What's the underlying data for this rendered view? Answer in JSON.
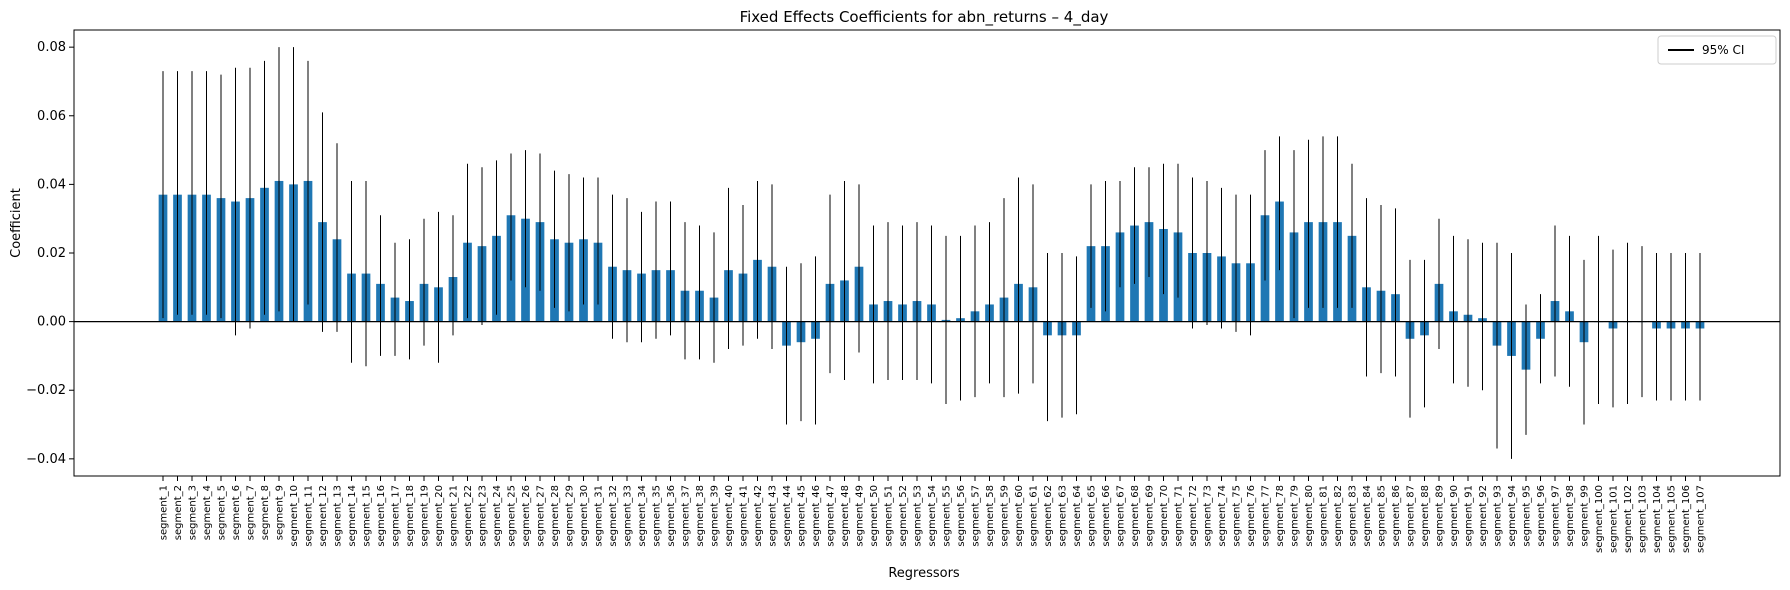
{
  "chart_data": {
    "type": "bar",
    "title": "Fixed Effects Coefficients for abn_returns – 4_day",
    "xlabel": "Regressors",
    "ylabel": "Coefficient",
    "ylim": [
      -0.045,
      0.085
    ],
    "yticks": [
      -0.04,
      -0.02,
      0.0,
      0.02,
      0.04,
      0.06,
      0.08
    ],
    "ytick_labels": [
      "−0.04",
      "−0.02",
      "0.00",
      "0.02",
      "0.04",
      "0.06",
      "0.08"
    ],
    "legend": {
      "label": "95% CI",
      "placement": "top-right"
    },
    "bar_color": "#1f77b4",
    "zero_line": true,
    "grid": false,
    "categories": [
      "segment_1",
      "segment_2",
      "segment_3",
      "segment_4",
      "segment_5",
      "segment_6",
      "segment_7",
      "segment_8",
      "segment_9",
      "segment_10",
      "segment_11",
      "segment_12",
      "segment_13",
      "segment_14",
      "segment_15",
      "segment_16",
      "segment_17",
      "segment_18",
      "segment_19",
      "segment_20",
      "segment_21",
      "segment_22",
      "segment_23",
      "segment_24",
      "segment_25",
      "segment_26",
      "segment_27",
      "segment_28",
      "segment_29",
      "segment_30",
      "segment_31",
      "segment_32",
      "segment_33",
      "segment_34",
      "segment_35",
      "segment_36",
      "segment_37",
      "segment_38",
      "segment_39",
      "segment_40",
      "segment_41",
      "segment_42",
      "segment_43",
      "segment_44",
      "segment_45",
      "segment_46",
      "segment_47",
      "segment_48",
      "segment_49",
      "segment_50",
      "segment_51",
      "segment_52",
      "segment_53",
      "segment_54",
      "segment_55",
      "segment_56",
      "segment_57",
      "segment_58",
      "segment_59",
      "segment_60",
      "segment_61",
      "segment_62",
      "segment_63",
      "segment_64",
      "segment_65",
      "segment_66",
      "segment_67",
      "segment_68",
      "segment_69",
      "segment_70",
      "segment_71",
      "segment_72",
      "segment_73",
      "segment_74",
      "segment_75",
      "segment_76",
      "segment_77",
      "segment_78",
      "segment_79",
      "segment_80",
      "segment_81",
      "segment_82",
      "segment_83",
      "segment_84",
      "segment_85",
      "segment_86",
      "segment_87",
      "segment_88",
      "segment_89",
      "segment_90",
      "segment_91",
      "segment_92",
      "segment_93",
      "segment_94",
      "segment_95",
      "segment_96",
      "segment_97",
      "segment_98",
      "segment_99",
      "segment_100",
      "segment_101",
      "segment_102",
      "segment_103",
      "segment_104",
      "segment_105",
      "segment_106",
      "segment_107"
    ],
    "values": [
      0.037,
      0.037,
      0.037,
      0.037,
      0.036,
      0.035,
      0.036,
      0.039,
      0.041,
      0.04,
      0.041,
      0.029,
      0.024,
      0.014,
      0.014,
      0.011,
      0.007,
      0.006,
      0.011,
      0.01,
      0.013,
      0.023,
      0.022,
      0.025,
      0.031,
      0.03,
      0.029,
      0.024,
      0.023,
      0.024,
      0.023,
      0.016,
      0.015,
      0.014,
      0.015,
      0.015,
      0.009,
      0.009,
      0.007,
      0.015,
      0.014,
      0.018,
      0.016,
      -0.007,
      -0.006,
      -0.005,
      0.011,
      0.012,
      0.016,
      0.005,
      0.006,
      0.005,
      0.006,
      0.005,
      0.0005,
      0.001,
      0.003,
      0.005,
      0.007,
      0.011,
      0.01,
      -0.004,
      -0.004,
      -0.004,
      0.022,
      0.022,
      0.026,
      0.028,
      0.029,
      0.027,
      0.026,
      0.02,
      0.02,
      0.019,
      0.017,
      0.017,
      0.031,
      0.035,
      0.026,
      0.029,
      0.029,
      0.029,
      0.025,
      0.01,
      0.009,
      0.008,
      -0.005,
      -0.004,
      0.011,
      0.003,
      0.002,
      0.001,
      -0.007,
      -0.01,
      -0.014,
      -0.005,
      0.006,
      0.003,
      -0.006,
      0.0,
      -0.002,
      0.0,
      0.0,
      -0.002,
      -0.002,
      -0.002,
      -0.002
    ],
    "ci_low": [
      0.001,
      0.002,
      0.002,
      0.002,
      0.001,
      -0.004,
      -0.002,
      0.002,
      0.003,
      0.0,
      0.005,
      -0.003,
      -0.003,
      -0.012,
      -0.013,
      -0.01,
      -0.01,
      -0.011,
      -0.007,
      -0.012,
      -0.004,
      0.001,
      -0.001,
      0.002,
      0.012,
      0.01,
      0.009,
      0.004,
      0.003,
      0.005,
      0.005,
      -0.005,
      -0.006,
      -0.006,
      -0.005,
      -0.004,
      -0.011,
      -0.011,
      -0.012,
      -0.008,
      -0.007,
      -0.005,
      -0.008,
      -0.03,
      -0.029,
      -0.03,
      -0.015,
      -0.017,
      -0.009,
      -0.018,
      -0.017,
      -0.017,
      -0.017,
      -0.018,
      -0.024,
      -0.023,
      -0.022,
      -0.018,
      -0.022,
      -0.021,
      -0.018,
      -0.029,
      -0.028,
      -0.027,
      0.004,
      0.003,
      0.01,
      0.011,
      0.013,
      0.008,
      0.007,
      -0.002,
      -0.001,
      -0.002,
      -0.003,
      -0.004,
      0.012,
      0.015,
      0.001,
      0.004,
      0.004,
      0.004,
      0.004,
      -0.016,
      -0.015,
      -0.016,
      -0.028,
      -0.025,
      -0.008,
      -0.018,
      -0.019,
      -0.02,
      -0.037,
      -0.04,
      -0.033,
      -0.018,
      -0.016,
      -0.019,
      -0.03,
      -0.024,
      -0.025,
      -0.024,
      -0.022,
      -0.023,
      -0.023,
      -0.023,
      -0.023
    ],
    "ci_high": [
      0.073,
      0.073,
      0.073,
      0.073,
      0.072,
      0.074,
      0.074,
      0.076,
      0.08,
      0.08,
      0.076,
      0.061,
      0.052,
      0.041,
      0.041,
      0.031,
      0.023,
      0.024,
      0.03,
      0.032,
      0.031,
      0.046,
      0.045,
      0.047,
      0.049,
      0.05,
      0.049,
      0.044,
      0.043,
      0.042,
      0.042,
      0.037,
      0.036,
      0.032,
      0.035,
      0.035,
      0.029,
      0.028,
      0.026,
      0.039,
      0.034,
      0.041,
      0.04,
      0.016,
      0.017,
      0.019,
      0.037,
      0.041,
      0.04,
      0.028,
      0.029,
      0.028,
      0.029,
      0.028,
      0.025,
      0.025,
      0.028,
      0.029,
      0.036,
      0.042,
      0.04,
      0.02,
      0.02,
      0.019,
      0.04,
      0.041,
      0.041,
      0.045,
      0.045,
      0.046,
      0.046,
      0.042,
      0.041,
      0.039,
      0.037,
      0.037,
      0.05,
      0.054,
      0.05,
      0.053,
      0.054,
      0.054,
      0.046,
      0.036,
      0.034,
      0.033,
      0.018,
      0.018,
      0.03,
      0.025,
      0.024,
      0.023,
      0.023,
      0.02,
      0.005,
      0.008,
      0.028,
      0.025,
      0.018,
      0.025,
      0.021,
      0.023,
      0.022,
      0.02,
      0.02,
      0.02,
      0.02
    ]
  }
}
